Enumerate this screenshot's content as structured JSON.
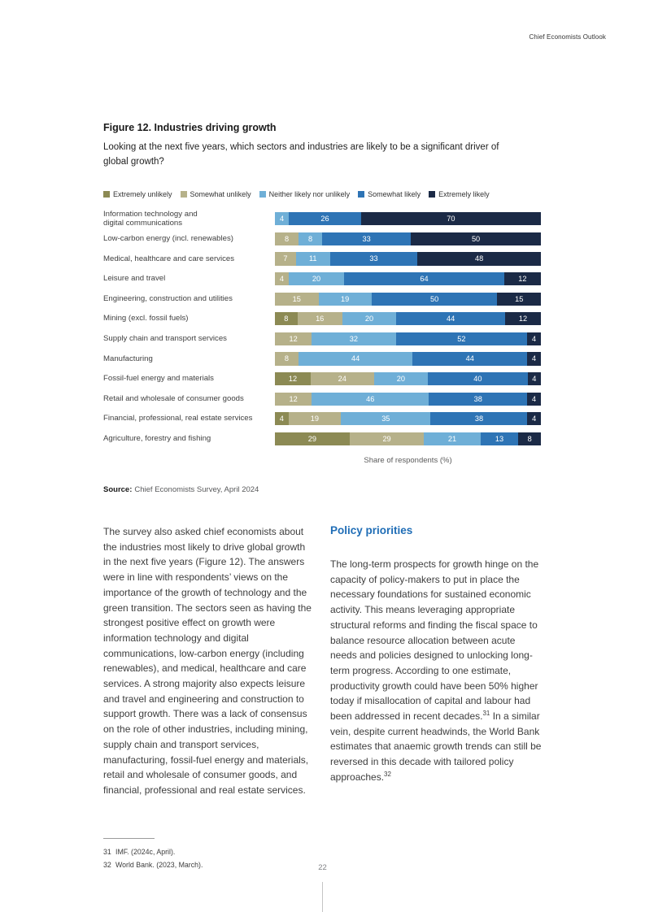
{
  "page": {
    "running_header": "Chief Economists Outlook",
    "page_number": "22"
  },
  "figure": {
    "title": "Figure 12. Industries driving growth",
    "subtitle": "Looking at the next five years, which sectors and industries are likely to be a significant driver of global growth?",
    "xaxis_label": "Share of respondents (%)",
    "source_label": "Source:",
    "source_text": "Chief Economists Survey, April 2024"
  },
  "chart_data": {
    "type": "bar",
    "orientation": "horizontal",
    "stacked": true,
    "unit": "percent",
    "xlim": [
      0,
      100
    ],
    "grid": false,
    "legend_position": "top",
    "title": "Figure 12. Industries driving growth",
    "xlabel": "Share of respondents (%)",
    "categories": [
      "Information technology and\ndigital communications",
      "Low-carbon energy (incl. renewables)",
      "Medical, healthcare and care services",
      "Leisure and travel",
      "Engineering, construction and utilities",
      "Mining (excl. fossil fuels)",
      "Supply chain and transport services",
      "Manufacturing",
      "Fossil-fuel energy and materials",
      "Retail and wholesale of consumer goods",
      "Financial, professional, real estate services",
      "Agriculture, forestry and fishing"
    ],
    "series": [
      {
        "name": "Extremely unlikely",
        "color": "#8C8A54",
        "values": [
          0,
          0,
          0,
          0,
          0,
          8,
          0,
          0,
          12,
          0,
          4,
          29
        ]
      },
      {
        "name": "Somewhat unlikely",
        "color": "#B6B18A",
        "values": [
          0,
          8,
          7,
          4,
          15,
          16,
          12,
          8,
          24,
          12,
          19,
          29
        ]
      },
      {
        "name": "Neither likely nor unlikely",
        "color": "#6FAFD7",
        "values": [
          4,
          8,
          11,
          20,
          19,
          20,
          32,
          44,
          20,
          46,
          35,
          21
        ]
      },
      {
        "name": "Somewhat likely",
        "color": "#2E74B5",
        "values": [
          26,
          33,
          33,
          64,
          50,
          44,
          52,
          44,
          40,
          38,
          38,
          13
        ]
      },
      {
        "name": "Extremely likely",
        "color": "#1B2A46",
        "values": [
          70,
          50,
          48,
          12,
          15,
          12,
          4,
          4,
          4,
          4,
          4,
          8
        ]
      }
    ]
  },
  "body": {
    "left_paragraph": "The survey also asked chief economists about the industries most likely to drive global growth in the next five years (Figure 12). The answers were in line with respondents’ views on the importance of the growth of technology and the green transition. The sectors seen as having the strongest positive effect on growth were information technology and digital communications, low-carbon energy (including renewables), and medical, healthcare and care services. A strong majority also expects leisure and travel and engineering and construction to support growth. There was a lack of consensus on the role of other industries, including mining, supply chain and transport services, manufacturing, fossil-fuel energy and materials, retail and wholesale of consumer goods, and financial, professional and real estate services.",
    "right_heading": "Policy priorities",
    "right_paragraph": [
      {
        "text": "The long-term prospects for growth hinge on the capacity of policy-makers to put in place the necessary foundations for sustained economic activity. This means leveraging appropriate structural reforms and finding the fiscal space to balance resource allocation between acute needs and policies designed to unlocking long-term progress. According to one estimate, productivity growth could have been 50% higher today if misallocation of capital and labour had been addressed in recent decades."
      },
      {
        "sup": "31"
      },
      {
        "text": " In a similar vein, despite current headwinds, the World Bank estimates that anaemic growth trends can still be reversed in this decade with tailored policy approaches."
      },
      {
        "sup": "32"
      }
    ]
  },
  "footnotes": [
    {
      "num": "31",
      "text": "IMF. (2024c, April)."
    },
    {
      "num": "32",
      "text": "World Bank. (2023, March)."
    }
  ]
}
